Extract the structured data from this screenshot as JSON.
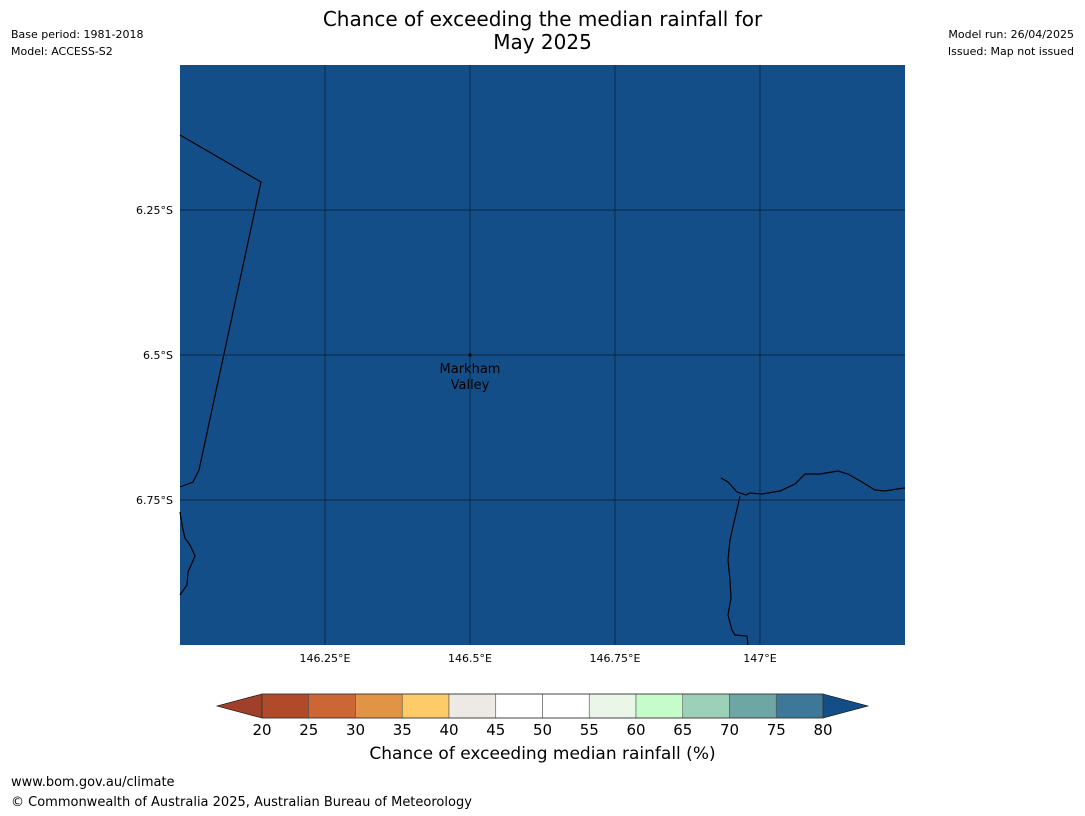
{
  "title": {
    "line1": "Chance of exceeding the median rainfall for",
    "line2": "May 2025"
  },
  "meta": {
    "base_period": "Base period: 1981-2018",
    "model": "Model: ACCESS-S2",
    "model_run": "Model run: 26/04/2025",
    "issued": "Issued: Map not issued"
  },
  "map": {
    "fill_color": "#144e88",
    "place": {
      "name_line1": "Markham",
      "name_line2": "Valley",
      "lon": 146.5,
      "lat": -6.5
    },
    "lat_ticks": [
      {
        "value": -6.25,
        "label": "6.25°S"
      },
      {
        "value": -6.5,
        "label": "6.5°S"
      },
      {
        "value": -6.75,
        "label": "6.75°S"
      }
    ],
    "lon_ticks": [
      {
        "value": 146.25,
        "label": "146.25°E"
      },
      {
        "value": 146.5,
        "label": "146.5°E"
      },
      {
        "value": 146.75,
        "label": "146.75°E"
      },
      {
        "value": 147.0,
        "label": "147°E"
      }
    ],
    "extent": {
      "lon_min": 146.0,
      "lon_max": 147.25,
      "lat_min": -7.0,
      "lat_max": -6.0
    }
  },
  "colorbar": {
    "label": "Chance of exceeding median rainfall (%)",
    "ticks": [
      "20",
      "25",
      "30",
      "35",
      "40",
      "45",
      "50",
      "55",
      "60",
      "65",
      "70",
      "75",
      "80"
    ],
    "under_color": "#a0402a",
    "over_color": "#144e88",
    "colors": [
      "#b14a28",
      "#cc6634",
      "#e19445",
      "#fecb68",
      "#ede9e4",
      "#ffffff",
      "#ffffff",
      "#e9f6e8",
      "#c6fbca",
      "#9dd0b8",
      "#6ea5a5",
      "#3e7898"
    ]
  },
  "footer": {
    "url": "www.bom.gov.au/climate",
    "copyright": "© Commonwealth of Australia 2025, Australian Bureau of Meteorology"
  }
}
